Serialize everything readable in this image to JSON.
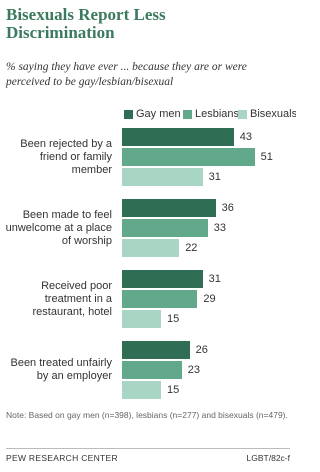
{
  "chart_data": {
    "type": "bar",
    "orientation": "horizontal",
    "title": "Bisexuals Report Less Discrimination",
    "subtitle": "% saying they have ever ... because they are or were perceived to be gay/lesbian/bisexual",
    "categories": [
      "Been rejected by a friend or family member",
      "Been made to feel unwelcome at a place of worship",
      "Received poor treatment in a restaurant, hotel",
      "Been treated unfairly by an employer"
    ],
    "series": [
      {
        "name": "Gay men",
        "color": "#2f6e55",
        "values": [
          43,
          36,
          31,
          26
        ]
      },
      {
        "name": "Lesbians",
        "color": "#62a98b",
        "values": [
          51,
          33,
          29,
          23
        ]
      },
      {
        "name": "Bisexuals",
        "color": "#a9d6c4",
        "values": [
          31,
          22,
          15,
          15
        ]
      }
    ],
    "note": "Note: Based on gay men (n=398), lesbians (n=277) and bisexuals (n=479).",
    "source": "PEW RESEARCH CENTER",
    "code": "LGBT/82c-f"
  }
}
